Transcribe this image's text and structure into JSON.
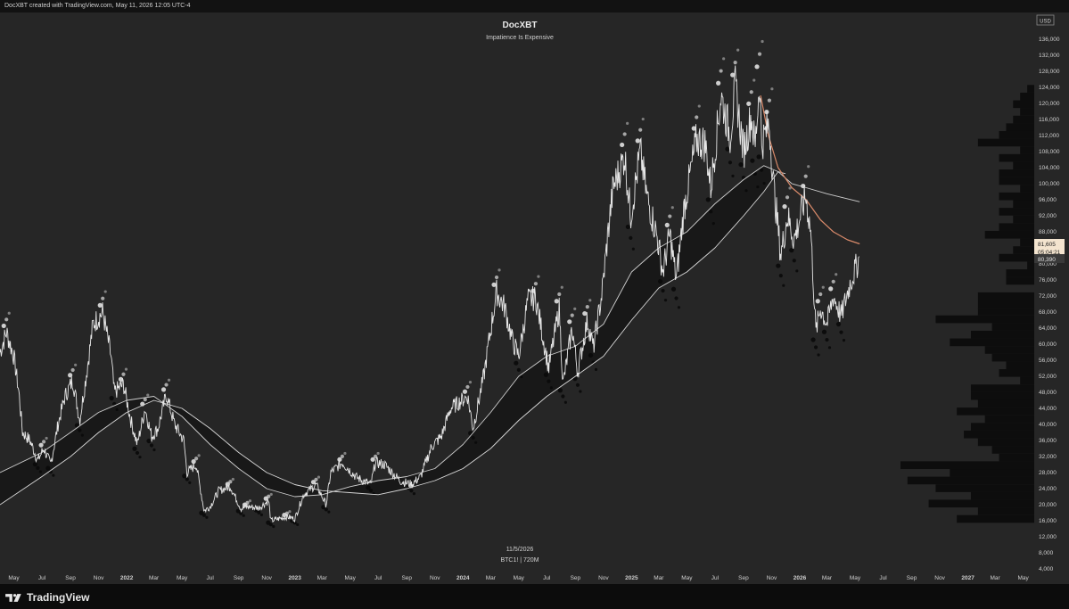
{
  "header": {
    "attribution": "DocXBT created with TradingView.com, May 11, 2026 12:05 UTC-4"
  },
  "footer": {
    "brand": "TradingView"
  },
  "colors": {
    "background": "#262626",
    "price": "#e6e6e6",
    "ema_fast": "#cfcfcf",
    "ema_slow": "#d9d9d9",
    "ema_slowest": "#a8a8a8",
    "downtrend": "#d98a6a",
    "cloud": "#161616",
    "volume_profile": "#0d0d0d"
  },
  "chart_data": {
    "type": "line",
    "title": "DocXBT",
    "subtitle": "Impatience Is Expensive",
    "watermark_date": "11/5/2026",
    "watermark_symbol": "BTC1! | 720M",
    "currency": "USD",
    "ylim": [
      4000,
      138000
    ],
    "y_ticks": [
      "136,000",
      "132,000",
      "128,000",
      "124,000",
      "120,000",
      "116,000",
      "112,000",
      "108,000",
      "104,000",
      "100,000",
      "96,000",
      "92,000",
      "88,000",
      "84,000",
      "80,000",
      "76,000",
      "72,000",
      "68,000",
      "64,000",
      "60,000",
      "56,000",
      "52,000",
      "48,000",
      "44,000",
      "40,000",
      "36,000",
      "32,000",
      "28,000",
      "24,000",
      "20,000",
      "16,000",
      "12,000",
      "8,000",
      "4,000"
    ],
    "x_range": [
      "2021-04-01",
      "2027-05-25"
    ],
    "x_ticks": [
      {
        "date": "2021-05-01",
        "label": "May",
        "bold": false
      },
      {
        "date": "2021-07-01",
        "label": "Jul",
        "bold": false
      },
      {
        "date": "2021-09-01",
        "label": "Sep",
        "bold": false
      },
      {
        "date": "2021-11-01",
        "label": "Nov",
        "bold": false
      },
      {
        "date": "2022-01-01",
        "label": "2022",
        "bold": true
      },
      {
        "date": "2022-03-01",
        "label": "Mar",
        "bold": false
      },
      {
        "date": "2022-05-01",
        "label": "May",
        "bold": false
      },
      {
        "date": "2022-07-01",
        "label": "Jul",
        "bold": false
      },
      {
        "date": "2022-09-01",
        "label": "Sep",
        "bold": false
      },
      {
        "date": "2022-11-01",
        "label": "Nov",
        "bold": false
      },
      {
        "date": "2023-01-01",
        "label": "2023",
        "bold": true
      },
      {
        "date": "2023-03-01",
        "label": "Mar",
        "bold": false
      },
      {
        "date": "2023-05-01",
        "label": "May",
        "bold": false
      },
      {
        "date": "2023-07-01",
        "label": "Jul",
        "bold": false
      },
      {
        "date": "2023-09-01",
        "label": "Sep",
        "bold": false
      },
      {
        "date": "2023-11-01",
        "label": "Nov",
        "bold": false
      },
      {
        "date": "2024-01-01",
        "label": "2024",
        "bold": true
      },
      {
        "date": "2024-03-01",
        "label": "Mar",
        "bold": false
      },
      {
        "date": "2024-05-01",
        "label": "May",
        "bold": false
      },
      {
        "date": "2024-07-01",
        "label": "Jul",
        "bold": false
      },
      {
        "date": "2024-09-01",
        "label": "Sep",
        "bold": false
      },
      {
        "date": "2024-11-01",
        "label": "Nov",
        "bold": false
      },
      {
        "date": "2025-01-01",
        "label": "2025",
        "bold": true
      },
      {
        "date": "2025-03-01",
        "label": "Mar",
        "bold": false
      },
      {
        "date": "2025-05-01",
        "label": "May",
        "bold": false
      },
      {
        "date": "2025-07-01",
        "label": "Jul",
        "bold": false
      },
      {
        "date": "2025-09-01",
        "label": "Sep",
        "bold": false
      },
      {
        "date": "2025-11-01",
        "label": "Nov",
        "bold": false
      },
      {
        "date": "2026-01-01",
        "label": "2026",
        "bold": true
      },
      {
        "date": "2026-03-01",
        "label": "Mar",
        "bold": false
      },
      {
        "date": "2026-05-01",
        "label": "May",
        "bold": false
      },
      {
        "date": "2026-07-01",
        "label": "Jul",
        "bold": false
      },
      {
        "date": "2026-09-01",
        "label": "Sep",
        "bold": false
      },
      {
        "date": "2026-11-01",
        "label": "Nov",
        "bold": false
      },
      {
        "date": "2027-01-01",
        "label": "2027",
        "bold": true
      },
      {
        "date": "2027-03-01",
        "label": "Mar",
        "bold": false
      },
      {
        "date": "2027-05-01",
        "label": "May",
        "bold": false
      }
    ],
    "price_labels": {
      "last_price": "81,605",
      "countdown": "05:04:21",
      "secondary_price": "80,390"
    },
    "series": [
      {
        "key": "price",
        "points": [
          [
            "2021-04-01",
            58000
          ],
          [
            "2021-04-15",
            63000
          ],
          [
            "2021-05-01",
            57000
          ],
          [
            "2021-05-12",
            48000
          ],
          [
            "2021-05-20",
            38000
          ],
          [
            "2021-06-05",
            36000
          ],
          [
            "2021-06-22",
            31000
          ],
          [
            "2021-07-05",
            34000
          ],
          [
            "2021-07-20",
            30000
          ],
          [
            "2021-08-05",
            40000
          ],
          [
            "2021-08-20",
            47000
          ],
          [
            "2021-09-06",
            51000
          ],
          [
            "2021-09-21",
            41000
          ],
          [
            "2021-10-05",
            52000
          ],
          [
            "2021-10-20",
            65000
          ],
          [
            "2021-11-10",
            68000
          ],
          [
            "2021-11-28",
            57000
          ],
          [
            "2021-12-05",
            48000
          ],
          [
            "2021-12-25",
            50000
          ],
          [
            "2022-01-10",
            41000
          ],
          [
            "2022-01-24",
            35000
          ],
          [
            "2022-02-10",
            44000
          ],
          [
            "2022-02-24",
            37000
          ],
          [
            "2022-03-10",
            39000
          ],
          [
            "2022-03-28",
            47500
          ],
          [
            "2022-04-15",
            40000
          ],
          [
            "2022-05-05",
            36000
          ],
          [
            "2022-05-12",
            28000
          ],
          [
            "2022-06-01",
            30000
          ],
          [
            "2022-06-18",
            18500
          ],
          [
            "2022-07-01",
            19500
          ],
          [
            "2022-07-20",
            23500
          ],
          [
            "2022-08-14",
            24500
          ],
          [
            "2022-09-06",
            19000
          ],
          [
            "2022-09-20",
            19500
          ],
          [
            "2022-10-15",
            19200
          ],
          [
            "2022-11-05",
            21000
          ],
          [
            "2022-11-10",
            16000
          ],
          [
            "2022-12-15",
            17000
          ],
          [
            "2023-01-01",
            16500
          ],
          [
            "2023-01-20",
            22500
          ],
          [
            "2023-02-16",
            25000
          ],
          [
            "2023-03-10",
            20000
          ],
          [
            "2023-03-20",
            28000
          ],
          [
            "2023-04-14",
            30500
          ],
          [
            "2023-05-15",
            26800
          ],
          [
            "2023-06-15",
            25000
          ],
          [
            "2023-06-25",
            30500
          ],
          [
            "2023-07-15",
            30000
          ],
          [
            "2023-08-17",
            26000
          ],
          [
            "2023-09-11",
            25000
          ],
          [
            "2023-10-01",
            27000
          ],
          [
            "2023-10-25",
            34500
          ],
          [
            "2023-11-15",
            37000
          ],
          [
            "2023-12-05",
            44000
          ],
          [
            "2024-01-11",
            47000
          ],
          [
            "2024-01-23",
            39000
          ],
          [
            "2024-02-15",
            52000
          ],
          [
            "2024-02-28",
            62000
          ],
          [
            "2024-03-14",
            73000
          ],
          [
            "2024-04-01",
            69000
          ],
          [
            "2024-04-17",
            61000
          ],
          [
            "2024-05-01",
            57000
          ],
          [
            "2024-05-21",
            71000
          ],
          [
            "2024-06-07",
            71500
          ],
          [
            "2024-07-05",
            54000
          ],
          [
            "2024-07-28",
            69000
          ],
          [
            "2024-08-05",
            50000
          ],
          [
            "2024-08-25",
            64000
          ],
          [
            "2024-09-06",
            53000
          ],
          [
            "2024-09-27",
            66000
          ],
          [
            "2024-10-10",
            59000
          ],
          [
            "2024-10-29",
            73000
          ],
          [
            "2024-11-12",
            89000
          ],
          [
            "2024-11-22",
            99000
          ],
          [
            "2024-12-05",
            103000
          ],
          [
            "2024-12-17",
            107000
          ],
          [
            "2024-12-30",
            92000
          ],
          [
            "2025-01-20",
            108000
          ],
          [
            "2025-02-03",
            97000
          ],
          [
            "2025-02-25",
            87000
          ],
          [
            "2025-03-10",
            78000
          ],
          [
            "2025-03-25",
            87500
          ],
          [
            "2025-04-08",
            76000
          ],
          [
            "2025-04-25",
            94000
          ],
          [
            "2025-05-22",
            111000
          ],
          [
            "2025-06-10",
            110000
          ],
          [
            "2025-06-22",
            99000
          ],
          [
            "2025-07-14",
            122000
          ],
          [
            "2025-08-03",
            112000
          ],
          [
            "2025-08-14",
            124000
          ],
          [
            "2025-09-01",
            108000
          ],
          [
            "2025-09-18",
            117000
          ],
          [
            "2025-09-26",
            109000
          ],
          [
            "2025-10-06",
            126000
          ],
          [
            "2025-10-10",
            110000
          ],
          [
            "2025-10-27",
            115000
          ],
          [
            "2025-11-05",
            100000
          ],
          [
            "2025-11-21",
            82000
          ],
          [
            "2025-12-05",
            92000
          ],
          [
            "2025-12-20",
            86000
          ],
          [
            "2026-01-14",
            97000
          ],
          [
            "2026-01-25",
            88000
          ],
          [
            "2026-02-05",
            63000
          ],
          [
            "2026-02-15",
            69000
          ],
          [
            "2026-03-01",
            65000
          ],
          [
            "2026-03-15",
            72000
          ],
          [
            "2026-04-01",
            67000
          ],
          [
            "2026-04-20",
            75000
          ],
          [
            "2026-05-11",
            81605
          ]
        ]
      },
      {
        "key": "ema_fast",
        "points": [
          [
            "2021-04-01",
            28000
          ],
          [
            "2021-07-01",
            33000
          ],
          [
            "2021-09-01",
            38000
          ],
          [
            "2021-11-01",
            43000
          ],
          [
            "2022-01-01",
            46000
          ],
          [
            "2022-03-01",
            47000
          ],
          [
            "2022-05-01",
            42000
          ],
          [
            "2022-07-01",
            35000
          ],
          [
            "2022-09-01",
            29000
          ],
          [
            "2022-11-01",
            24000
          ],
          [
            "2023-01-01",
            22000
          ],
          [
            "2023-03-01",
            22500
          ],
          [
            "2023-05-01",
            24500
          ],
          [
            "2023-07-01",
            26000
          ],
          [
            "2023-09-01",
            27000
          ],
          [
            "2023-11-01",
            29000
          ],
          [
            "2024-01-01",
            35000
          ],
          [
            "2024-03-01",
            43000
          ],
          [
            "2024-05-01",
            52000
          ],
          [
            "2024-07-01",
            57000
          ],
          [
            "2024-09-01",
            59500
          ],
          [
            "2024-11-01",
            65000
          ],
          [
            "2025-01-01",
            78000
          ],
          [
            "2025-03-01",
            84000
          ],
          [
            "2025-05-01",
            88000
          ],
          [
            "2025-07-01",
            95000
          ],
          [
            "2025-09-01",
            101000
          ],
          [
            "2025-10-15",
            104500
          ],
          [
            "2025-11-15",
            103000
          ],
          [
            "2025-12-15",
            100000
          ],
          [
            "2026-01-15",
            99000
          ],
          [
            "2026-03-01",
            97500
          ],
          [
            "2026-05-11",
            95500
          ]
        ]
      },
      {
        "key": "ema_slow",
        "points": [
          [
            "2021-04-01",
            20000
          ],
          [
            "2021-07-01",
            27000
          ],
          [
            "2021-09-01",
            32000
          ],
          [
            "2021-11-01",
            38000
          ],
          [
            "2022-01-01",
            43000
          ],
          [
            "2022-03-01",
            46000
          ],
          [
            "2022-05-01",
            44000
          ],
          [
            "2022-07-01",
            39000
          ],
          [
            "2022-09-01",
            33000
          ],
          [
            "2022-11-01",
            28000
          ],
          [
            "2023-01-01",
            25000
          ],
          [
            "2023-03-01",
            23500
          ],
          [
            "2023-05-01",
            23000
          ],
          [
            "2023-07-01",
            22500
          ],
          [
            "2023-09-01",
            24000
          ],
          [
            "2023-11-01",
            26000
          ],
          [
            "2024-01-01",
            29000
          ],
          [
            "2024-03-01",
            34000
          ],
          [
            "2024-05-01",
            41000
          ],
          [
            "2024-07-01",
            47000
          ],
          [
            "2024-09-01",
            52000
          ],
          [
            "2024-11-01",
            57000
          ],
          [
            "2025-01-01",
            66000
          ],
          [
            "2025-03-01",
            74000
          ],
          [
            "2025-05-01",
            78000
          ],
          [
            "2025-07-01",
            84000
          ],
          [
            "2025-09-01",
            92000
          ],
          [
            "2025-10-15",
            98000
          ],
          [
            "2025-11-15",
            103000
          ],
          [
            "2025-12-01",
            102500
          ]
        ]
      },
      {
        "key": "downtrend",
        "points": [
          [
            "2025-10-08",
            122000
          ],
          [
            "2025-10-25",
            112000
          ],
          [
            "2025-11-15",
            104000
          ],
          [
            "2025-12-15",
            99000
          ],
          [
            "2026-01-15",
            96000
          ],
          [
            "2026-02-15",
            91000
          ],
          [
            "2026-03-15",
            88000
          ],
          [
            "2026-04-15",
            86000
          ],
          [
            "2026-05-11",
            85000
          ]
        ]
      }
    ]
  }
}
